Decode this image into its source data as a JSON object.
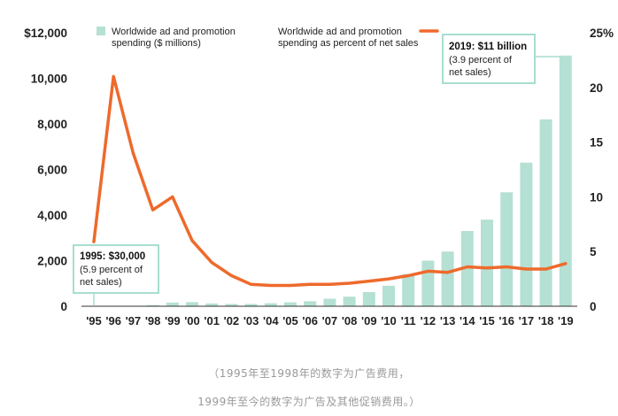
{
  "chart_data": {
    "type": "bar+line",
    "categories": [
      "'95",
      "'96",
      "'97",
      "'98",
      "'99",
      "'00",
      "'01",
      "'02",
      "'03",
      "'04",
      "'05",
      "'06",
      "'07",
      "'08",
      "'09",
      "'10",
      "'11",
      "'12",
      "'13",
      "'14",
      "'15",
      "'16",
      "'17",
      "'18",
      "'19"
    ],
    "series": [
      {
        "name": "Worldwide ad and promotion spending ($ millions)",
        "type": "bar",
        "axis": "left",
        "values": [
          0.03,
          1,
          10,
          50,
          160,
          180,
          120,
          100,
          100,
          130,
          170,
          220,
          330,
          420,
          620,
          900,
          1400,
          2000,
          2400,
          3300,
          3800,
          5000,
          6300,
          8200,
          11000
        ]
      },
      {
        "name": "Worldwide ad and promotion spending as percent of net sales",
        "type": "line",
        "axis": "right",
        "values": [
          5.9,
          21,
          14,
          8.8,
          10,
          6,
          4,
          2.8,
          2,
          1.9,
          1.9,
          2,
          2,
          2.1,
          2.3,
          2.5,
          2.8,
          3.2,
          3.1,
          3.6,
          3.5,
          3.6,
          3.4,
          3.4,
          3.9
        ]
      }
    ],
    "left_axis": {
      "ticks": [
        "$12,000",
        "10,000",
        "8,000",
        "6,000",
        "4,000",
        "2,000",
        "0"
      ],
      "ylim": [
        0,
        12000
      ]
    },
    "right_axis": {
      "ticks": [
        "25%",
        "20",
        "15",
        "10",
        "5",
        "0"
      ],
      "ylim": [
        0,
        25
      ]
    },
    "legend": [
      {
        "label_line1": "Worldwide ad and promotion",
        "label_line2": "spending ($ millions)",
        "color": "#b5e0d4"
      },
      {
        "label_line1": "Worldwide ad and promotion",
        "label_line2": "spending as percent of net sales",
        "color": "#ee6a2c"
      }
    ],
    "annotations": [
      {
        "title": "1995: $30,000",
        "line2": "(5.9 percent of",
        "line3": "net sales)"
      },
      {
        "title": "2019: $11 billion",
        "line2": "(3.9 percent of",
        "line3": "net sales)"
      }
    ]
  },
  "caption": {
    "line1": "（1995年至1998年的数字为广告费用，",
    "line2": "1999年至今的数字为广告及其他促销费用。）"
  },
  "colors": {
    "bar": "#b5e0d4",
    "line": "#ee6a2c",
    "box_border": "#a8ddd0",
    "axis": "#333333"
  }
}
